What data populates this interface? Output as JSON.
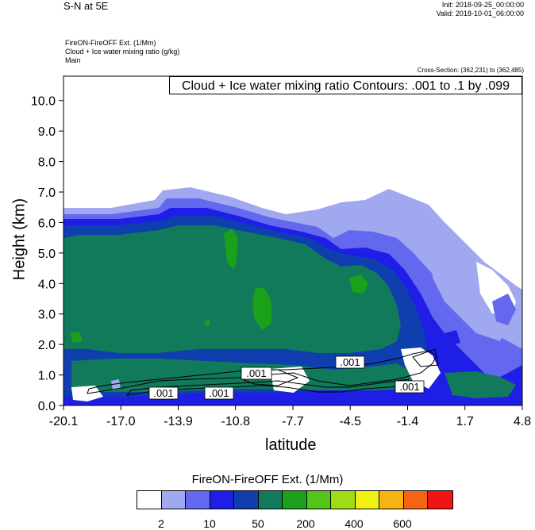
{
  "header": {
    "title": "S-N at 5E",
    "init": "Init: 2018-09-25_00:00:00",
    "valid": "Valid: 2018-10-01_06:00:00"
  },
  "variables": {
    "line1": "FireON-FireOFF Ext.   (1/Mm)",
    "line2": "Cloud + Ice water mixing ratio   (g/kg)",
    "line3": "Main"
  },
  "cross_section": "Cross-Section: (362,231) to (362,485)",
  "contour_label": "Cloud + Ice water mixing ratio Contours: .001 to .1 by .099",
  "colorbar": {
    "title": "FireON-FireOFF Ext.  (1/Mm)",
    "colors": [
      "#ffffff",
      "#a0a8f0",
      "#6468ee",
      "#1e1ee6",
      "#0f3faf",
      "#117a5a",
      "#1aa01a",
      "#52c41a",
      "#a0dc14",
      "#f0f014",
      "#f5b414",
      "#f56414",
      "#f01414"
    ],
    "tick_labels": [
      "2",
      "10",
      "50",
      "200",
      "400",
      "600"
    ]
  },
  "chart_data": {
    "type": "heatmap",
    "title": "S-N at 5E",
    "xlabel": "latitude",
    "ylabel": "Height (km)",
    "x_ticks": [
      "-20.1",
      "-17.0",
      "-13.9",
      "-10.8",
      "-7.7",
      "-4.5",
      "-1.4",
      "1.7",
      "4.8"
    ],
    "y_ticks": [
      "0.0",
      "1.0",
      "2.0",
      "3.0",
      "4.0",
      "5.0",
      "6.0",
      "7.0",
      "8.0",
      "9.0",
      "10.0"
    ],
    "xlim": [
      -20.1,
      4.8
    ],
    "ylim": [
      0,
      10.8
    ],
    "contour_labels": [
      ".001",
      ".001",
      ".001",
      ".001",
      ".001"
    ]
  }
}
